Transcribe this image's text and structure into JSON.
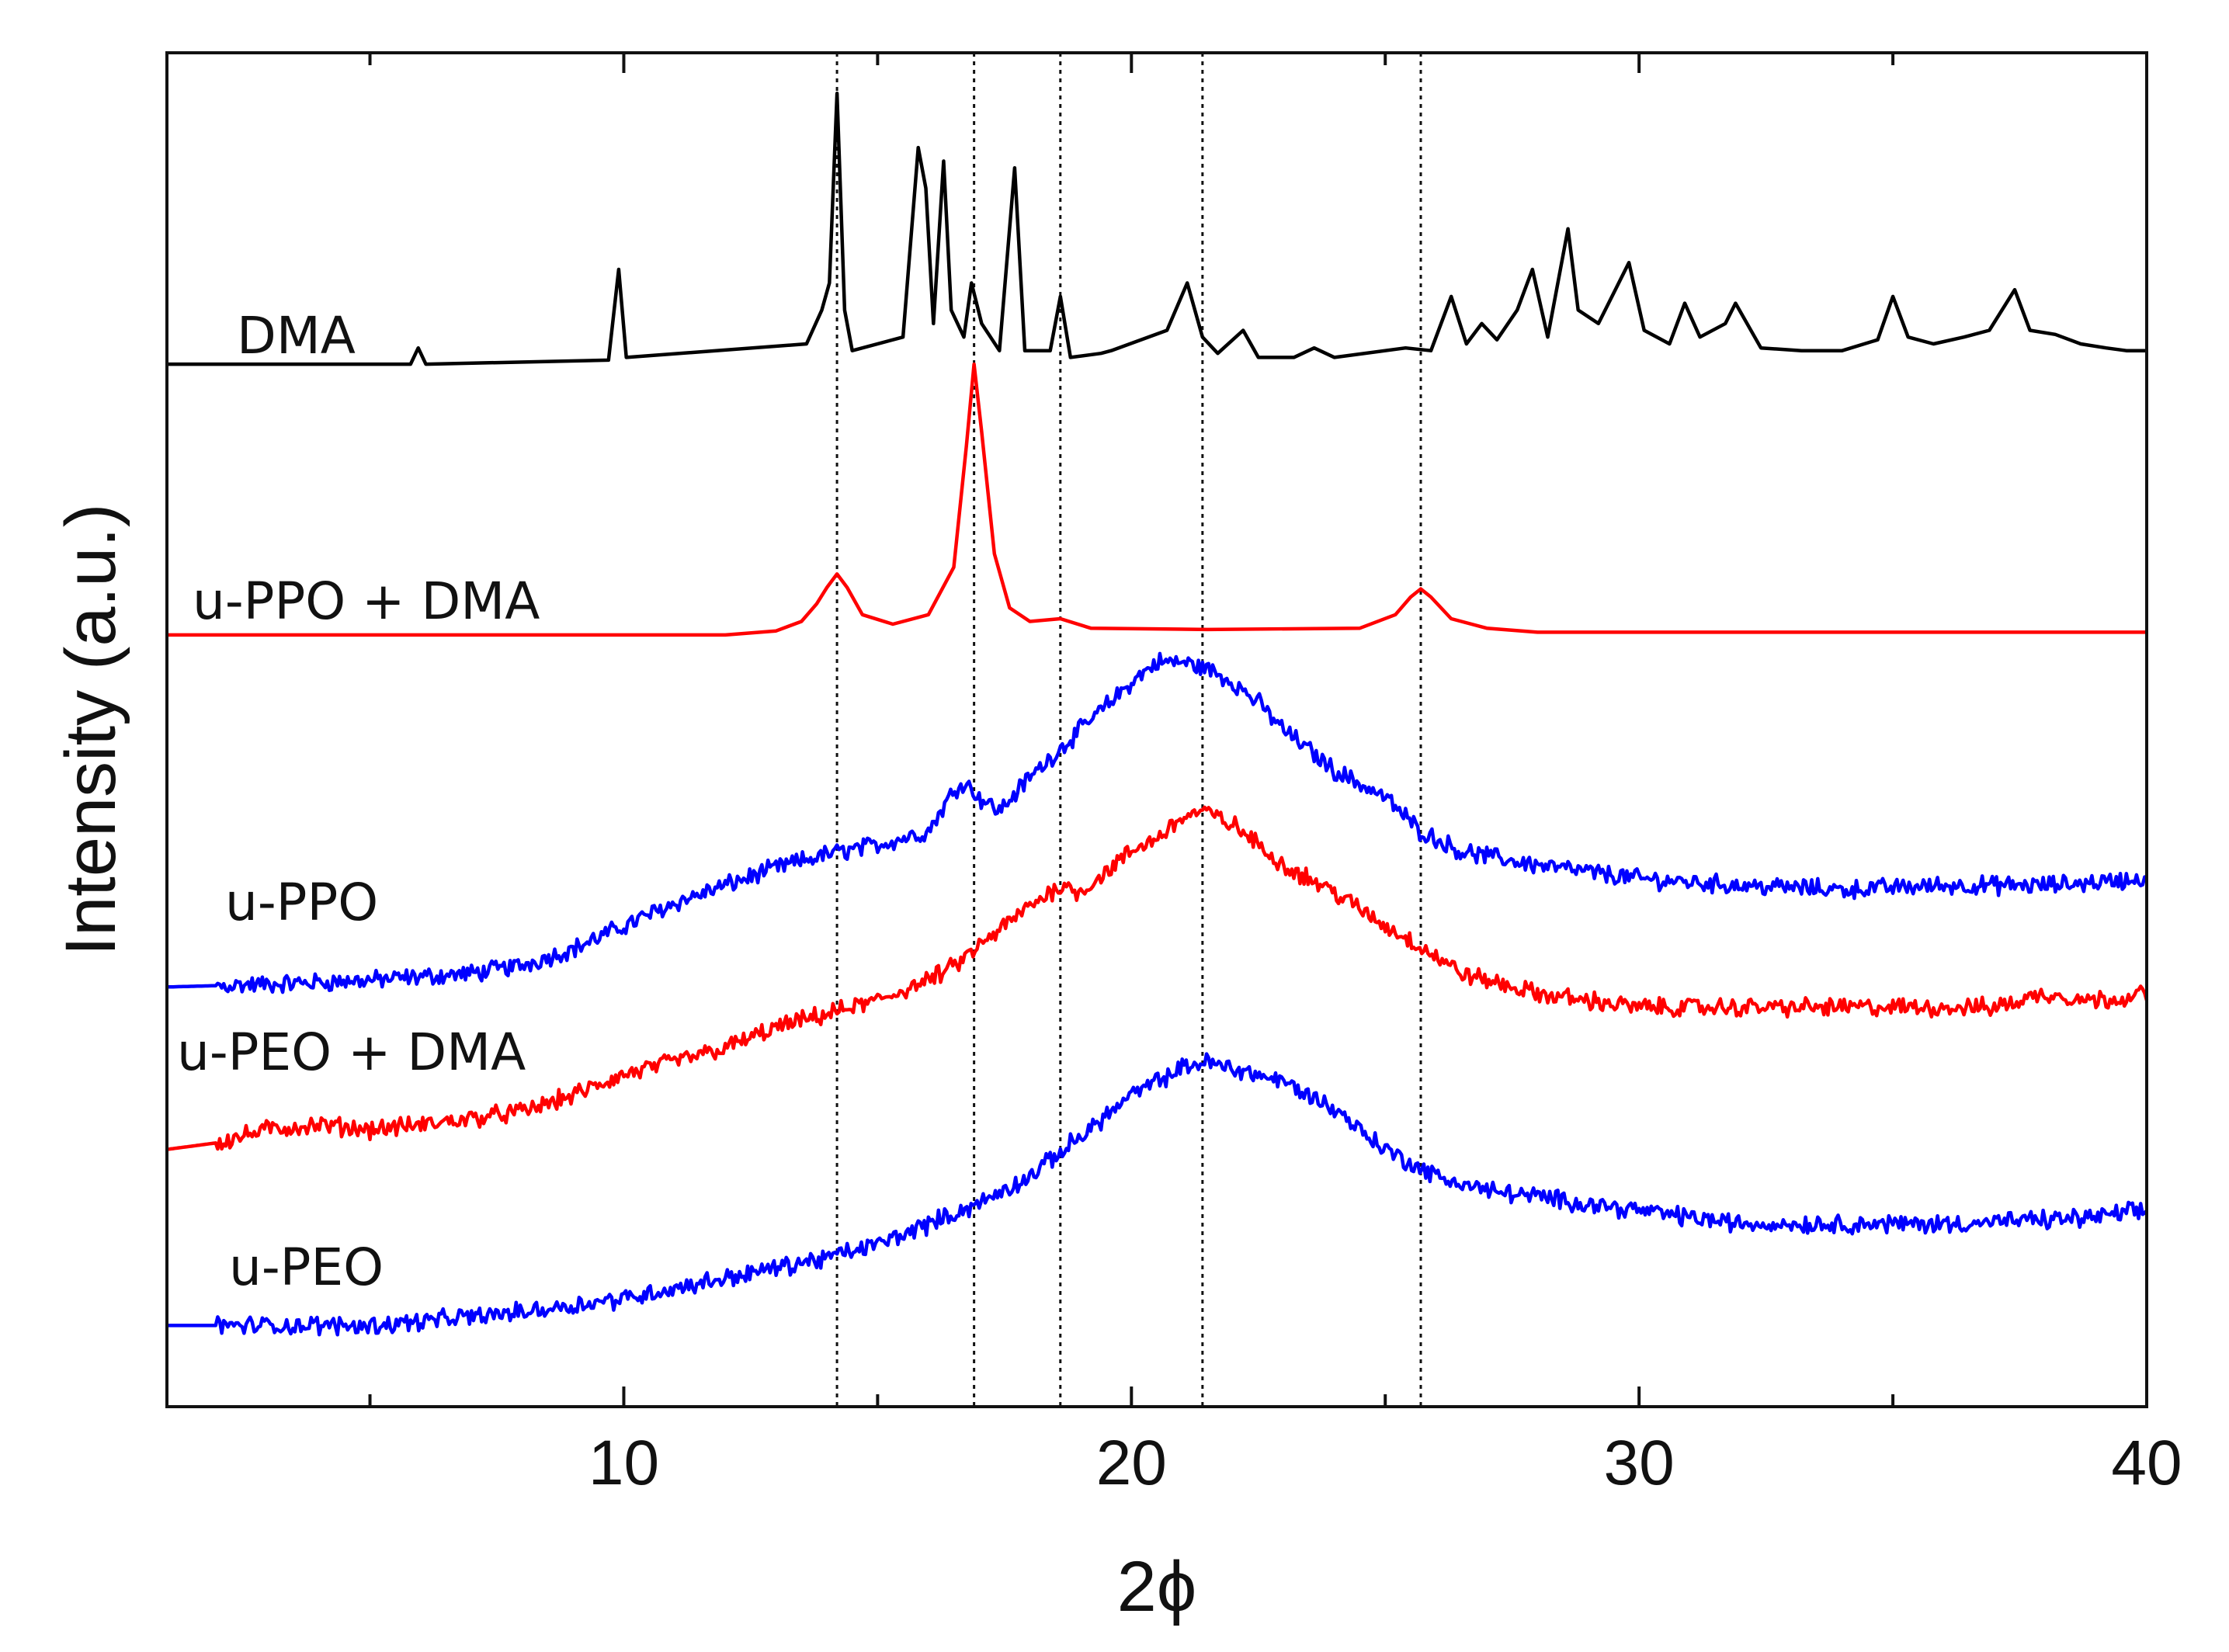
{
  "chart_data": {
    "type": "line",
    "title": "",
    "xlabel": "2ϕ",
    "ylabel": "Intensity (a.u.)",
    "xlim": [
      1,
      40
    ],
    "ylim": [
      0,
      100
    ],
    "xticks": [
      10,
      20,
      30,
      40
    ],
    "yticks_shown": false,
    "grid": false,
    "legend": "inline labels at left of each curve",
    "reference_lines_x": [
      14.2,
      16.9,
      18.6,
      21.4,
      25.7
    ],
    "series": [
      {
        "name": "DMA",
        "color": "#000000",
        "offset": 77,
        "points": [
          [
            1,
            0
          ],
          [
            5.8,
            0
          ],
          [
            5.95,
            1.2
          ],
          [
            6.1,
            0
          ],
          [
            9.7,
            0.3
          ],
          [
            9.9,
            7
          ],
          [
            10.05,
            0.5
          ],
          [
            13.6,
            1.5
          ],
          [
            13.9,
            4
          ],
          [
            14.05,
            6
          ],
          [
            14.2,
            20
          ],
          [
            14.35,
            4
          ],
          [
            14.5,
            1
          ],
          [
            15.5,
            2
          ],
          [
            15.8,
            16
          ],
          [
            15.95,
            13
          ],
          [
            16.1,
            3
          ],
          [
            16.3,
            15
          ],
          [
            16.45,
            4
          ],
          [
            16.7,
            2
          ],
          [
            16.85,
            6
          ],
          [
            17.05,
            3
          ],
          [
            17.4,
            1
          ],
          [
            17.7,
            14.5
          ],
          [
            17.9,
            1
          ],
          [
            18.4,
            1
          ],
          [
            18.6,
            5
          ],
          [
            18.8,
            0.5
          ],
          [
            19.4,
            0.8
          ],
          [
            19.6,
            1
          ],
          [
            20.7,
            2.5
          ],
          [
            21.1,
            6
          ],
          [
            21.4,
            2
          ],
          [
            21.7,
            0.8
          ],
          [
            22.2,
            2.5
          ],
          [
            22.5,
            0.5
          ],
          [
            23.2,
            0.5
          ],
          [
            23.6,
            1.2
          ],
          [
            24,
            0.5
          ],
          [
            25.4,
            1.2
          ],
          [
            25.9,
            1
          ],
          [
            26.3,
            5
          ],
          [
            26.6,
            1.5
          ],
          [
            26.9,
            3
          ],
          [
            27.2,
            1.8
          ],
          [
            27.6,
            4
          ],
          [
            27.9,
            7
          ],
          [
            28.2,
            2
          ],
          [
            28.6,
            10
          ],
          [
            28.8,
            4
          ],
          [
            29.2,
            3
          ],
          [
            29.8,
            7.5
          ],
          [
            30.1,
            2.5
          ],
          [
            30.6,
            1.5
          ],
          [
            30.9,
            4.5
          ],
          [
            31.2,
            2
          ],
          [
            31.7,
            3
          ],
          [
            31.9,
            4.5
          ],
          [
            32.4,
            1.2
          ],
          [
            33.2,
            1
          ],
          [
            34,
            1
          ],
          [
            34.7,
            1.8
          ],
          [
            35,
            5
          ],
          [
            35.3,
            2
          ],
          [
            35.8,
            1.5
          ],
          [
            36.4,
            2
          ],
          [
            36.9,
            2.5
          ],
          [
            37.4,
            5.5
          ],
          [
            37.7,
            2.5
          ],
          [
            38.2,
            2.2
          ],
          [
            38.7,
            1.5
          ],
          [
            39.2,
            1.2
          ],
          [
            39.6,
            1
          ],
          [
            40,
            1
          ]
        ]
      },
      {
        "name": "u-PPO + DMA",
        "color": "#ff0000",
        "offset": 57,
        "points": [
          [
            1,
            0
          ],
          [
            12,
            0
          ],
          [
            13,
            0.3
          ],
          [
            13.5,
            1
          ],
          [
            13.8,
            2.3
          ],
          [
            14.0,
            3.5
          ],
          [
            14.2,
            4.5
          ],
          [
            14.4,
            3.5
          ],
          [
            14.7,
            1.5
          ],
          [
            15.3,
            0.8
          ],
          [
            16.0,
            1.5
          ],
          [
            16.5,
            5
          ],
          [
            16.75,
            14
          ],
          [
            16.9,
            20
          ],
          [
            17.05,
            15
          ],
          [
            17.3,
            6
          ],
          [
            17.6,
            2
          ],
          [
            18.0,
            1
          ],
          [
            18.6,
            1.2
          ],
          [
            19.2,
            0.5
          ],
          [
            21.5,
            0.4
          ],
          [
            24.5,
            0.5
          ],
          [
            25.2,
            1.5
          ],
          [
            25.5,
            2.8
          ],
          [
            25.7,
            3.4
          ],
          [
            25.9,
            2.8
          ],
          [
            26.3,
            1.2
          ],
          [
            27,
            0.5
          ],
          [
            28,
            0.2
          ],
          [
            40,
            0.2
          ]
        ]
      },
      {
        "name": "u-PPO",
        "color": "#0000ff",
        "offset": 31,
        "points": [
          [
            1,
            0
          ],
          [
            3,
            0.2
          ],
          [
            5,
            0.5
          ],
          [
            7,
            1.0
          ],
          [
            8,
            1.6
          ],
          [
            9,
            2.8
          ],
          [
            10,
            4.5
          ],
          [
            11,
            6.2
          ],
          [
            12,
            7.5
          ],
          [
            13,
            8.8
          ],
          [
            14,
            9.8
          ],
          [
            15,
            10.5
          ],
          [
            16,
            11.5
          ],
          [
            16.5,
            14.5
          ],
          [
            16.7,
            15.2
          ],
          [
            17,
            14
          ],
          [
            17.4,
            13
          ],
          [
            18,
            15.5
          ],
          [
            19,
            19
          ],
          [
            20,
            22.5
          ],
          [
            20.5,
            24
          ],
          [
            21,
            24
          ],
          [
            21.5,
            23.5
          ],
          [
            22,
            22.5
          ],
          [
            22.5,
            21
          ],
          [
            23,
            19
          ],
          [
            24,
            16
          ],
          [
            25,
            14
          ],
          [
            25.7,
            11.5
          ],
          [
            26.5,
            10
          ],
          [
            28,
            9
          ],
          [
            30,
            8
          ],
          [
            32,
            7.5
          ],
          [
            34,
            7.2
          ],
          [
            36,
            7.5
          ],
          [
            38,
            7.5
          ],
          [
            40,
            8
          ]
        ]
      },
      {
        "name": "u-PEO + DMA",
        "color": "#ff0000",
        "offset": 19,
        "points": [
          [
            1,
            0
          ],
          [
            2,
            0.5
          ],
          [
            3,
            1.5
          ],
          [
            4,
            1.8
          ],
          [
            5,
            1.5
          ],
          [
            6,
            1.8
          ],
          [
            8,
            2.8
          ],
          [
            9,
            4
          ],
          [
            10,
            5.5
          ],
          [
            12,
            7.5
          ],
          [
            13,
            9
          ],
          [
            14,
            10
          ],
          [
            15,
            11
          ],
          [
            16,
            12.5
          ],
          [
            16.5,
            13.5
          ],
          [
            17,
            15
          ],
          [
            18,
            18
          ],
          [
            18.6,
            19.5
          ],
          [
            19,
            19
          ],
          [
            20,
            22
          ],
          [
            20.5,
            23
          ],
          [
            21,
            24.5
          ],
          [
            21.4,
            25
          ],
          [
            22,
            24
          ],
          [
            22.5,
            22.5
          ],
          [
            23,
            21
          ],
          [
            24,
            19
          ],
          [
            25,
            16.5
          ],
          [
            25.7,
            15
          ],
          [
            26.5,
            13
          ],
          [
            28,
            11.5
          ],
          [
            30,
            10.5
          ],
          [
            32,
            10.5
          ],
          [
            34,
            10.5
          ],
          [
            36,
            10.5
          ],
          [
            37,
            10.5
          ],
          [
            38,
            11.5
          ],
          [
            39,
            11
          ],
          [
            40,
            11.5
          ]
        ]
      },
      {
        "name": "u-PEO",
        "color": "#0000ff",
        "offset": 6,
        "points": [
          [
            1,
            0
          ],
          [
            5,
            0
          ],
          [
            6,
            0.3
          ],
          [
            8,
            1
          ],
          [
            10,
            2
          ],
          [
            12,
            3.5
          ],
          [
            14,
            5
          ],
          [
            15,
            6
          ],
          [
            16,
            7.5
          ],
          [
            17,
            9
          ],
          [
            18,
            11
          ],
          [
            19,
            14
          ],
          [
            20,
            17
          ],
          [
            21,
            19
          ],
          [
            21.4,
            19.5
          ],
          [
            22,
            19
          ],
          [
            23,
            18
          ],
          [
            24,
            16
          ],
          [
            25,
            13
          ],
          [
            26,
            11
          ],
          [
            27,
            10
          ],
          [
            28,
            9.5
          ],
          [
            30,
            8.5
          ],
          [
            32,
            7.5
          ],
          [
            34,
            7.5
          ],
          [
            36,
            7.5
          ],
          [
            38,
            7.8
          ],
          [
            39,
            8
          ],
          [
            40,
            8.5
          ]
        ]
      }
    ]
  }
}
